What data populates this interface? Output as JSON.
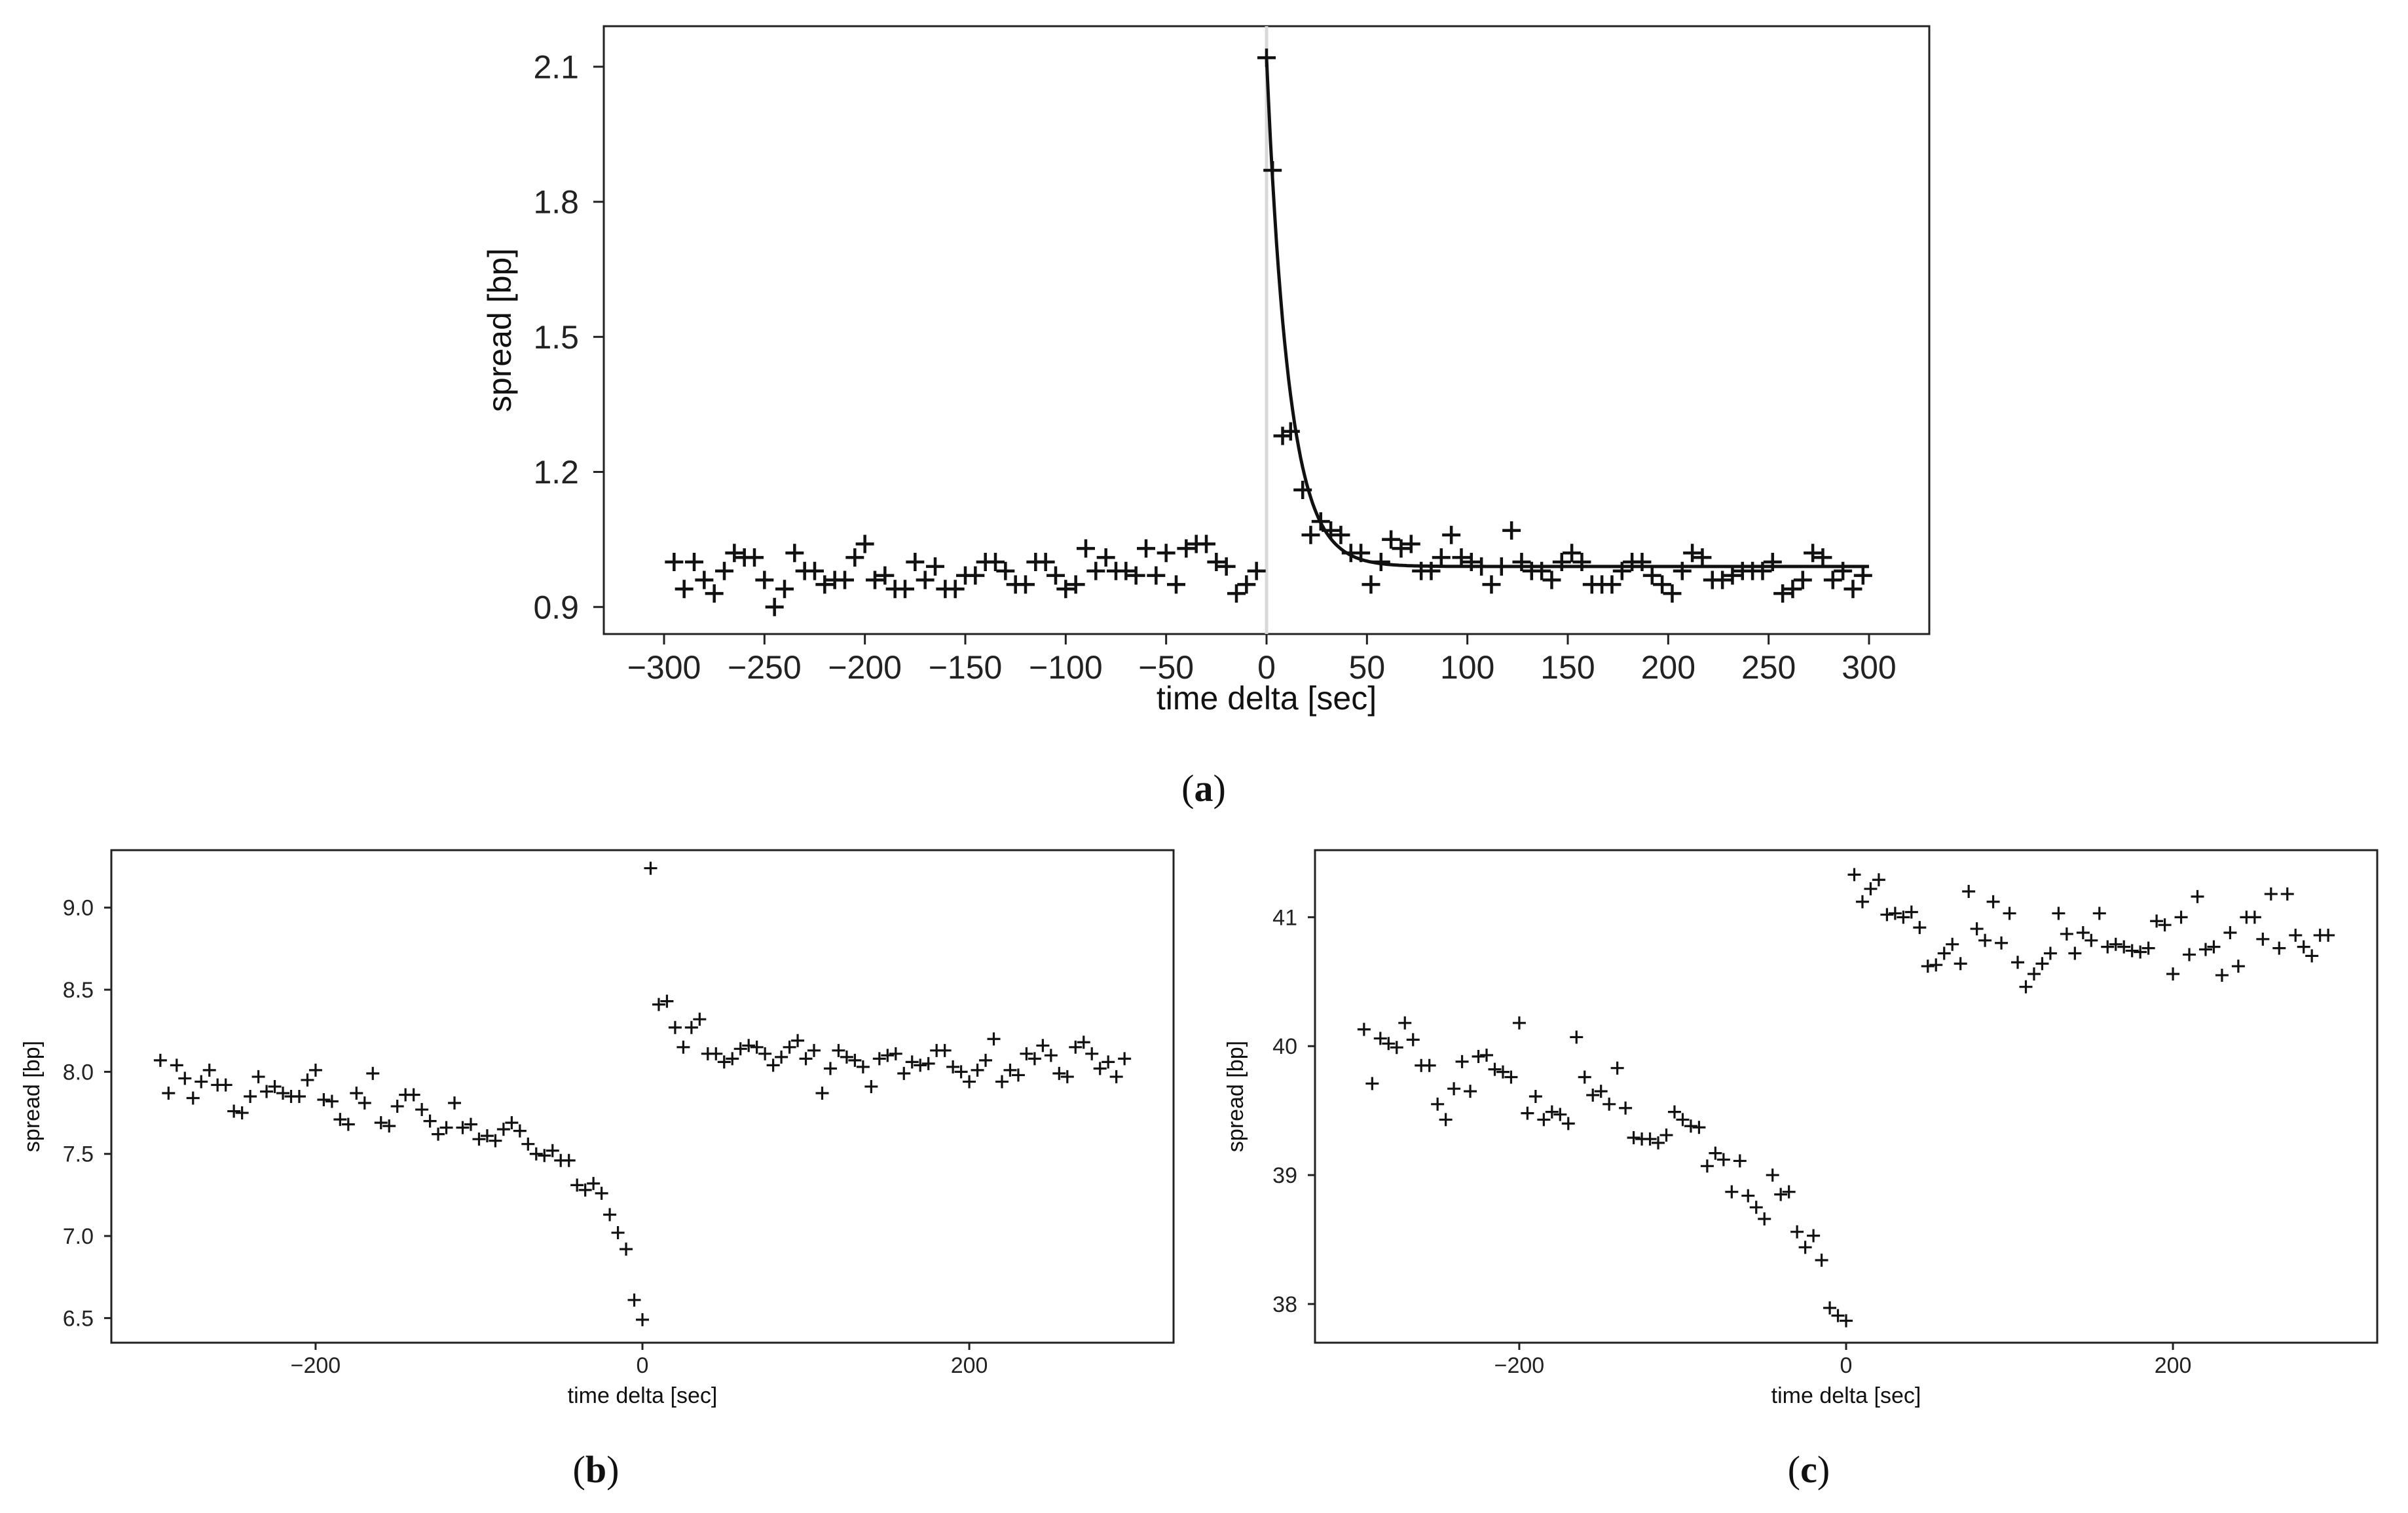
{
  "captions": {
    "a": "a",
    "b": "b",
    "c": "c"
  },
  "chart_data": [
    {
      "id": "a",
      "type": "scatter",
      "xlabel": "time delta [sec]",
      "ylabel": "spread [bp]",
      "xlim": [
        -330,
        330
      ],
      "ylim": [
        0.84,
        2.19
      ],
      "xticks": [
        -300,
        -250,
        -200,
        -150,
        -100,
        -50,
        0,
        50,
        100,
        150,
        200,
        250,
        300
      ],
      "yticks": [
        0.9,
        1.2,
        1.5,
        1.8,
        2.1
      ],
      "ytick_decimals": 1,
      "vline_x": 0,
      "grid": false,
      "marker": "+",
      "series": [
        {
          "x": [
            -295,
            -290,
            -285,
            -280,
            -275,
            -270,
            -265,
            -260,
            -255,
            -250,
            -245,
            -240,
            -235,
            -230,
            -225,
            -220,
            -215,
            -210,
            -205,
            -200,
            -195,
            -190,
            -185,
            -180,
            -175,
            -170,
            -165,
            -160,
            -155,
            -150,
            -145,
            -140,
            -135,
            -130,
            -125,
            -120,
            -115,
            -110,
            -105,
            -100,
            -95,
            -90,
            -85,
            -80,
            -75,
            -70,
            -65,
            -60,
            -55,
            -50,
            -45,
            -40,
            -35,
            -30,
            -25,
            -20,
            -15,
            -10,
            -5,
            0,
            3,
            8,
            12,
            18,
            22,
            27,
            32,
            37,
            42,
            47,
            52,
            57,
            62,
            67,
            72,
            77,
            82,
            87,
            92,
            97,
            102,
            107,
            112,
            117,
            122,
            127,
            132,
            137,
            142,
            147,
            152,
            157,
            162,
            167,
            172,
            177,
            182,
            187,
            192,
            197,
            202,
            207,
            212,
            217,
            222,
            227,
            232,
            237,
            242,
            247,
            252,
            257,
            262,
            267,
            272,
            277,
            282,
            287,
            292,
            297
          ],
          "y": [
            1.0,
            0.94,
            1.0,
            0.96,
            0.93,
            0.98,
            1.02,
            1.01,
            1.01,
            0.96,
            0.9,
            0.94,
            1.02,
            0.98,
            0.98,
            0.95,
            0.96,
            0.96,
            1.01,
            1.04,
            0.96,
            0.97,
            0.94,
            0.94,
            1.0,
            0.96,
            0.99,
            0.94,
            0.94,
            0.97,
            0.97,
            1.0,
            1.0,
            0.98,
            0.95,
            0.95,
            1.0,
            1.0,
            0.97,
            0.94,
            0.95,
            1.03,
            0.98,
            1.01,
            0.98,
            0.98,
            0.97,
            1.03,
            0.97,
            1.02,
            0.95,
            1.03,
            1.04,
            1.04,
            1.0,
            0.99,
            0.93,
            0.95,
            0.98,
            2.12,
            1.87,
            1.28,
            1.29,
            1.16,
            1.06,
            1.09,
            1.07,
            1.06,
            1.02,
            1.02,
            0.95,
            1.0,
            1.05,
            1.03,
            1.04,
            0.98,
            0.98,
            1.01,
            1.06,
            1.01,
            1.0,
            0.99,
            0.95,
            0.99,
            1.07,
            1.0,
            0.98,
            0.98,
            0.96,
            1.0,
            1.02,
            1.0,
            0.95,
            0.95,
            0.95,
            0.98,
            1.0,
            1.0,
            0.97,
            0.95,
            0.93,
            0.98,
            1.02,
            1.01,
            0.96,
            0.96,
            0.97,
            0.98,
            0.98,
            0.98,
            1.0,
            0.93,
            0.94,
            0.96,
            1.02,
            1.01,
            0.96,
            0.98,
            0.94,
            0.97
          ]
        }
      ],
      "fit_curve": {
        "type": "exponential_decay",
        "start_x": 0,
        "end_x": 300,
        "a": 0.99,
        "b": 1.13,
        "tau": 11
      }
    },
    {
      "id": "b",
      "type": "scatter",
      "xlabel": "time delta [sec]",
      "ylabel": "spread [bp]",
      "xlim": [
        -325,
        325
      ],
      "ylim": [
        6.35,
        9.35
      ],
      "xticks": [
        -200,
        0,
        200
      ],
      "yticks": [
        6.5,
        7.0,
        7.5,
        8.0,
        8.5,
        9.0
      ],
      "ytick_decimals": 1,
      "grid": false,
      "marker": "+",
      "series": [
        {
          "x": [
            -295,
            -290,
            -285,
            -280,
            -275,
            -270,
            -265,
            -260,
            -255,
            -250,
            -245,
            -240,
            -235,
            -230,
            -225,
            -220,
            -215,
            -210,
            -205,
            -200,
            -195,
            -190,
            -185,
            -180,
            -175,
            -170,
            -165,
            -160,
            -155,
            -150,
            -145,
            -140,
            -135,
            -130,
            -125,
            -120,
            -115,
            -110,
            -105,
            -100,
            -95,
            -90,
            -85,
            -80,
            -75,
            -70,
            -65,
            -60,
            -55,
            -50,
            -45,
            -40,
            -35,
            -30,
            -25,
            -20,
            -15,
            -10,
            -5,
            0,
            5,
            10,
            15,
            20,
            25,
            30,
            35,
            40,
            45,
            50,
            55,
            60,
            65,
            70,
            75,
            80,
            85,
            90,
            95,
            100,
            105,
            110,
            115,
            120,
            125,
            130,
            135,
            140,
            145,
            150,
            155,
            160,
            165,
            170,
            175,
            180,
            185,
            190,
            195,
            200,
            205,
            210,
            215,
            220,
            225,
            230,
            235,
            240,
            245,
            250,
            255,
            260,
            265,
            270,
            275,
            280,
            285,
            290,
            295
          ],
          "y": [
            8.07,
            7.87,
            8.04,
            7.96,
            7.84,
            7.94,
            8.01,
            7.92,
            7.92,
            7.76,
            7.75,
            7.85,
            7.97,
            7.88,
            7.91,
            7.87,
            7.85,
            7.85,
            7.95,
            8.01,
            7.83,
            7.82,
            7.71,
            7.68,
            7.87,
            7.81,
            7.99,
            7.69,
            7.67,
            7.79,
            7.86,
            7.86,
            7.77,
            7.7,
            7.62,
            7.66,
            7.81,
            7.66,
            7.68,
            7.59,
            7.61,
            7.58,
            7.65,
            7.69,
            7.64,
            7.56,
            7.5,
            7.49,
            7.52,
            7.46,
            7.46,
            7.31,
            7.28,
            7.32,
            7.26,
            7.13,
            7.02,
            6.92,
            6.61,
            6.49,
            9.24,
            8.41,
            8.43,
            8.27,
            8.15,
            8.27,
            8.32,
            8.11,
            8.11,
            8.06,
            8.08,
            8.14,
            8.16,
            8.15,
            8.11,
            8.04,
            8.09,
            8.15,
            8.19,
            8.08,
            8.13,
            7.87,
            8.02,
            8.13,
            8.09,
            8.07,
            8.03,
            7.91,
            8.08,
            8.1,
            8.11,
            7.99,
            8.06,
            8.04,
            8.05,
            8.13,
            8.13,
            8.03,
            8.0,
            7.94,
            8.01,
            8.07,
            8.2,
            7.94,
            8.01,
            7.98,
            8.11,
            8.08,
            8.16,
            8.1,
            7.99,
            7.97,
            8.15,
            8.18,
            8.11,
            8.02,
            8.06,
            7.97,
            8.08
          ]
        }
      ]
    },
    {
      "id": "c",
      "type": "scatter",
      "xlabel": "time delta [sec]",
      "ylabel": "spread [bp]",
      "xlim": [
        -325,
        325
      ],
      "ylim": [
        37.7,
        41.52
      ],
      "xticks": [
        -200,
        0,
        200
      ],
      "yticks": [
        38,
        39,
        40,
        41
      ],
      "ytick_decimals": 0,
      "grid": false,
      "marker": "+",
      "series": [
        {
          "x": [
            -295,
            -290,
            -285,
            -280,
            -275,
            -270,
            -265,
            -260,
            -255,
            -250,
            -245,
            -240,
            -235,
            -230,
            -225,
            -220,
            -215,
            -210,
            -205,
            -200,
            -195,
            -190,
            -185,
            -180,
            -175,
            -170,
            -165,
            -160,
            -155,
            -150,
            -145,
            -140,
            -135,
            -130,
            -125,
            -120,
            -115,
            -110,
            -105,
            -100,
            -95,
            -90,
            -85,
            -80,
            -75,
            -70,
            -65,
            -60,
            -55,
            -50,
            -45,
            -40,
            -35,
            -30,
            -25,
            -20,
            -15,
            -10,
            -5,
            0,
            5,
            10,
            15,
            20,
            25,
            30,
            35,
            40,
            45,
            50,
            55,
            60,
            65,
            70,
            75,
            80,
            85,
            90,
            95,
            100,
            105,
            110,
            115,
            120,
            125,
            130,
            135,
            140,
            145,
            150,
            155,
            160,
            165,
            170,
            175,
            180,
            185,
            190,
            195,
            200,
            205,
            210,
            215,
            220,
            225,
            230,
            235,
            240,
            245,
            250,
            255,
            260,
            265,
            270,
            275,
            280,
            285,
            290,
            295
          ],
          "y": [
            40.13,
            39.71,
            40.06,
            40.02,
            39.99,
            40.18,
            40.05,
            39.85,
            39.85,
            39.55,
            39.43,
            39.67,
            39.88,
            39.65,
            39.92,
            39.93,
            39.82,
            39.8,
            39.76,
            40.18,
            39.48,
            39.61,
            39.43,
            39.49,
            39.47,
            39.4,
            40.07,
            39.76,
            39.62,
            39.65,
            39.55,
            39.83,
            39.52,
            39.29,
            39.28,
            39.28,
            39.25,
            39.31,
            39.49,
            39.43,
            39.38,
            39.37,
            39.07,
            39.17,
            39.12,
            38.87,
            39.11,
            38.84,
            38.75,
            38.66,
            39.0,
            38.85,
            38.87,
            38.56,
            38.44,
            38.53,
            38.34,
            37.97,
            37.91,
            37.87,
            41.33,
            41.12,
            41.22,
            41.29,
            41.02,
            41.03,
            41.0,
            41.04,
            40.92,
            40.62,
            40.63,
            40.72,
            40.79,
            40.64,
            41.2,
            40.91,
            40.82,
            41.12,
            40.8,
            41.03,
            40.65,
            40.46,
            40.56,
            40.64,
            40.72,
            41.03,
            40.87,
            40.72,
            40.88,
            40.82,
            41.03,
            40.77,
            40.79,
            40.77,
            40.74,
            40.73,
            40.76,
            40.97,
            40.94,
            40.56,
            41.0,
            40.71,
            41.16,
            40.75,
            40.77,
            40.55,
            40.88,
            40.62,
            41.0,
            41.0,
            40.83,
            41.18,
            40.76,
            41.18,
            40.86,
            40.77,
            40.7,
            40.86,
            40.86
          ]
        }
      ]
    }
  ]
}
